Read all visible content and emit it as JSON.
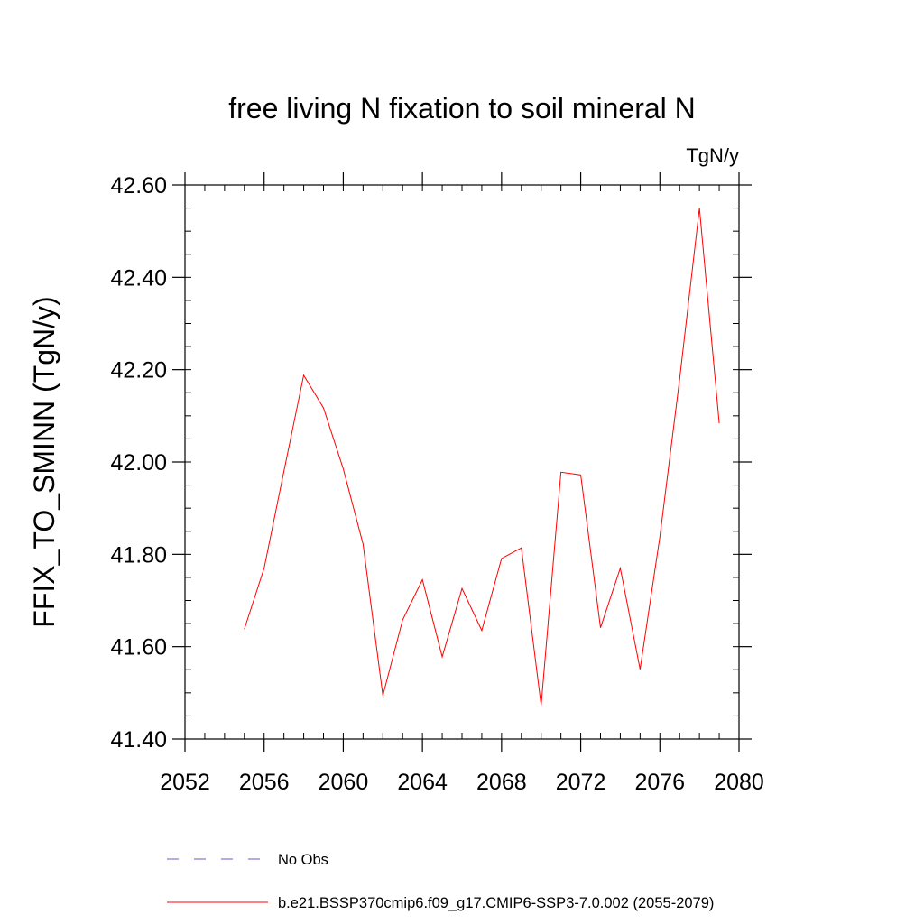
{
  "chart_data": {
    "type": "line",
    "title": "free living N fixation to soil mineral N",
    "units_label": "TgN/y",
    "ylabel": "FFIX_TO_SMINN  (TgN/y)",
    "xlabel": "",
    "xlim": [
      2052,
      2080
    ],
    "ylim": [
      41.4,
      42.6
    ],
    "xticks": [
      2052,
      2056,
      2060,
      2064,
      2068,
      2072,
      2076,
      2080
    ],
    "xtick_labels": [
      "2052",
      "2056",
      "2060",
      "2064",
      "2068",
      "2072",
      "2076",
      "2080"
    ],
    "yticks": [
      41.4,
      41.6,
      41.8,
      42.0,
      42.2,
      42.4,
      42.6
    ],
    "ytick_labels": [
      "41.40",
      "41.60",
      "41.80",
      "42.00",
      "42.20",
      "42.40",
      "42.60"
    ],
    "grid": false,
    "series": [
      {
        "name": "b.e21.BSSP370cmip6.f09_g17.CMIP6-SSP3-7.0.002 (2055-2079)",
        "color": "#ff0000",
        "x": [
          2055,
          2056,
          2057,
          2058,
          2059,
          2060,
          2061,
          2062,
          2063,
          2064,
          2065,
          2066,
          2067,
          2068,
          2069,
          2070,
          2071,
          2072,
          2073,
          2074,
          2075,
          2076,
          2077,
          2078,
          2079
        ],
        "values": [
          41.638,
          41.77,
          41.98,
          42.188,
          42.117,
          41.985,
          41.822,
          41.494,
          41.658,
          41.745,
          41.578,
          41.726,
          41.635,
          41.791,
          41.814,
          41.473,
          41.978,
          41.972,
          41.641,
          41.77,
          41.551,
          41.838,
          42.18,
          42.55,
          42.084
        ]
      }
    ],
    "legend": [
      {
        "label": "No Obs",
        "style": "dashed",
        "color": "#6a5acd"
      },
      {
        "label": "b.e21.BSSP370cmip6.f09_g17.CMIP6-SSP3-7.0.002 (2055-2079)",
        "style": "solid",
        "color": "#ff0000"
      }
    ]
  }
}
